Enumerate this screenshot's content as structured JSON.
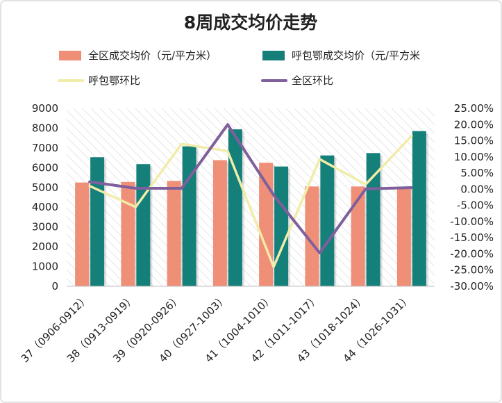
{
  "chart_data": {
    "type": "bar",
    "title": "8周成交均价走势",
    "categories": [
      "37（0906-0912）",
      "38（0913-0919）",
      "39（0920-0926）",
      "40（0927-1003）",
      "41（1004-1010）",
      "42（1011-1017）",
      "43（1018-1024）",
      "44（1026-1031）"
    ],
    "series": [
      {
        "name": "全区成交均价（元/平方米）",
        "type": "bar",
        "axis": "left",
        "color": "#f08f78",
        "values": [
          5250,
          5280,
          5330,
          6380,
          6250,
          5050,
          5050,
          5030
        ]
      },
      {
        "name": "呼包鄂成交均价（元/平方米",
        "type": "bar",
        "axis": "left",
        "color": "#157f7a",
        "values": [
          6530,
          6180,
          7080,
          7940,
          6060,
          6620,
          6740,
          7850
        ]
      },
      {
        "name": "呼包鄂环比",
        "type": "line",
        "axis": "right",
        "color": "#f1eca8",
        "values": [
          1.0,
          -5.5,
          14.0,
          11.8,
          -24.0,
          9.3,
          1.5,
          16.5
        ]
      },
      {
        "name": "全区环比",
        "type": "line",
        "axis": "right",
        "color": "#7f5f9c",
        "values": [
          2.3,
          0.3,
          0.3,
          20.0,
          -1.8,
          -19.7,
          0.1,
          0.5
        ]
      }
    ],
    "ylim_left": [
      0,
      9000
    ],
    "yticks_left": [
      "0",
      "1000",
      "2000",
      "3000",
      "4000",
      "5000",
      "6000",
      "7000",
      "8000",
      "9000"
    ],
    "ylim_right": [
      -30,
      25
    ],
    "yticks_right": [
      "-30.00%",
      "-25.00%",
      "-20.00%",
      "-15.00%",
      "-10.00%",
      "-5.00%",
      "0.00%",
      "5.00%",
      "10.00%",
      "15.00%",
      "20.00%",
      "25.00%"
    ],
    "legend_position": "top",
    "grid": "diagonal hatch background"
  }
}
